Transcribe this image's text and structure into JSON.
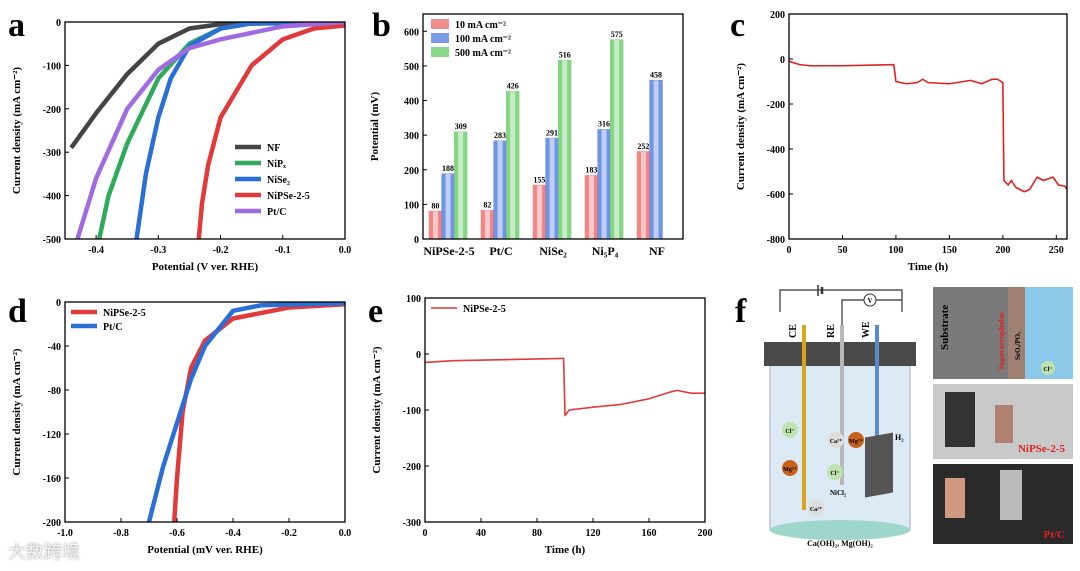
{
  "panel_labels": [
    "a",
    "b",
    "c",
    "d",
    "e",
    "f"
  ],
  "watermark": "大数跨境",
  "chart_data": [
    {
      "id": "a",
      "type": "line",
      "xlabel": "Potential (V ver. RHE)",
      "ylabel": "Current density (mA cm⁻²)",
      "xlim": [
        -0.45,
        0
      ],
      "ylim": [
        -500,
        0
      ],
      "xticks": [
        -0.4,
        -0.3,
        -0.2,
        -0.1,
        0.0
      ],
      "xtick_labels": [
        "-0.4",
        "-0.3",
        "-0.2",
        "-0.1",
        "0.0"
      ],
      "yticks": [
        0,
        -100,
        -200,
        -300,
        -400,
        -500
      ],
      "ytick_labels": [
        "0",
        "-100",
        "-200",
        "-300",
        "-400",
        "-500"
      ],
      "legend": "bottom-right",
      "series": [
        {
          "name": "NF",
          "color": "#444444",
          "x": [
            0,
            -0.2,
            -0.25,
            -0.3,
            -0.35,
            -0.4,
            -0.44
          ],
          "y": [
            0,
            -5,
            -15,
            -50,
            -120,
            -210,
            -290
          ]
        },
        {
          "name": "NiPₓ",
          "color": "#2eaa5a",
          "x": [
            0,
            -0.15,
            -0.2,
            -0.25,
            -0.3,
            -0.35,
            -0.38,
            -0.395
          ],
          "y": [
            0,
            -3,
            -15,
            -50,
            -130,
            -280,
            -400,
            -500
          ]
        },
        {
          "name": "NiSe₂",
          "color": "#2a6fd6",
          "x": [
            0,
            -0.15,
            -0.2,
            -0.25,
            -0.28,
            -0.3,
            -0.32,
            -0.335
          ],
          "y": [
            0,
            -3,
            -15,
            -55,
            -130,
            -220,
            -350,
            -500
          ]
        },
        {
          "name": "NiPSe-2-5",
          "color": "#e03a3a",
          "x": [
            0,
            -0.05,
            -0.1,
            -0.15,
            -0.2,
            -0.22,
            -0.23,
            -0.235
          ],
          "y": [
            -8,
            -15,
            -40,
            -100,
            -220,
            -330,
            -420,
            -500
          ]
        },
        {
          "name": "Pt/C",
          "color": "#a06be0",
          "x": [
            0,
            -0.1,
            -0.2,
            -0.25,
            -0.3,
            -0.35,
            -0.4,
            -0.43
          ],
          "y": [
            0,
            -10,
            -40,
            -60,
            -110,
            -200,
            -360,
            -500
          ]
        }
      ]
    },
    {
      "id": "b",
      "type": "bar",
      "xlabel": "",
      "ylabel": "Potential (mV)",
      "ylim": [
        0,
        650
      ],
      "yticks": [
        0,
        100,
        200,
        300,
        400,
        500,
        600
      ],
      "ytick_labels": [
        "0",
        "100",
        "200",
        "300",
        "400",
        "500",
        "600"
      ],
      "categories": [
        "NiPSe-2-5",
        "Pt/C",
        "NiSe₂",
        "Ni₅P₄",
        "NF"
      ],
      "legend": "top-left",
      "series": [
        {
          "name": "10 mA cm⁻²",
          "color": "#f07070",
          "values": [
            80,
            82,
            155,
            183,
            252
          ]
        },
        {
          "name": "100 mA cm⁻²",
          "color": "#5a82e0",
          "values": [
            188,
            283,
            291,
            316,
            458
          ]
        },
        {
          "name": "500 mA cm⁻²",
          "color": "#6fd06f",
          "values": [
            309,
            426,
            516,
            575,
            null
          ]
        }
      ]
    },
    {
      "id": "c",
      "type": "line",
      "xlabel": "Time (h)",
      "ylabel": "Current density (mA cm⁻²)",
      "xlim": [
        0,
        260
      ],
      "ylim": [
        -800,
        200
      ],
      "xticks": [
        0,
        50,
        100,
        150,
        200,
        250
      ],
      "xtick_labels": [
        "0",
        "50",
        "100",
        "150",
        "200",
        "250"
      ],
      "yticks": [
        200,
        0,
        -200,
        -400,
        -600,
        -800
      ],
      "ytick_labels": [
        "200",
        "0",
        "-200",
        "-400",
        "-600",
        "-800"
      ],
      "series": [
        {
          "name": "NiPSe-2-5",
          "color": "#e02020",
          "x": [
            0,
            10,
            20,
            50,
            98,
            100,
            110,
            120,
            125,
            130,
            150,
            170,
            180,
            190,
            195,
            200,
            201,
            205,
            208,
            212,
            220,
            225,
            232,
            238,
            247,
            252,
            258,
            260
          ],
          "y": [
            -10,
            -25,
            -30,
            -30,
            -25,
            -100,
            -110,
            -105,
            -90,
            -105,
            -110,
            -95,
            -110,
            -90,
            -90,
            -105,
            -540,
            -560,
            -540,
            -570,
            -590,
            -580,
            -525,
            -540,
            -525,
            -560,
            -565,
            -580
          ]
        }
      ]
    },
    {
      "id": "d",
      "type": "line",
      "xlabel": "Potential (mV ver. RHE)",
      "ylabel": "Current density (mA cm⁻²)",
      "xlim": [
        -1.0,
        0
      ],
      "ylim": [
        -200,
        0
      ],
      "xticks": [
        -1.0,
        -0.8,
        -0.6,
        -0.4,
        -0.2,
        0.0
      ],
      "xtick_labels": [
        "-1.0",
        "-0.8",
        "-0.6",
        "-0.4",
        "-0.2",
        "0.0"
      ],
      "yticks": [
        0,
        -40,
        -80,
        -120,
        -160,
        -200
      ],
      "ytick_labels": [
        "0",
        "-40",
        "-80",
        "-120",
        "-160",
        "-200"
      ],
      "legend": "top-left",
      "series": [
        {
          "name": "NiPSe-2-5",
          "color": "#e03a3a",
          "x": [
            0,
            -0.2,
            -0.4,
            -0.5,
            -0.55,
            -0.58,
            -0.6,
            -0.61
          ],
          "y": [
            -2,
            -5,
            -15,
            -35,
            -60,
            -100,
            -160,
            -200
          ]
        },
        {
          "name": "Pt/C",
          "color": "#2a6fd6",
          "x": [
            0,
            -0.3,
            -0.4,
            -0.5,
            -0.55,
            -0.6,
            -0.65,
            -0.7
          ],
          "y": [
            -1,
            -3,
            -8,
            -40,
            -70,
            -110,
            -150,
            -200
          ]
        }
      ]
    },
    {
      "id": "e",
      "type": "line",
      "xlabel": "Time (h)",
      "ylabel": "Current density (mA cm⁻²)",
      "xlim": [
        0,
        200
      ],
      "ylim": [
        -300,
        100
      ],
      "xticks": [
        0,
        40,
        80,
        120,
        160,
        200
      ],
      "xtick_labels": [
        "0",
        "40",
        "80",
        "120",
        "160",
        "200"
      ],
      "yticks": [
        100,
        0,
        -100,
        -200,
        -300
      ],
      "ytick_labels": [
        "100",
        "0",
        "-100",
        "-200",
        "-300"
      ],
      "legend": "top-left",
      "series": [
        {
          "name": "NiPSe-2-5",
          "color": "#e03a3a",
          "x": [
            0,
            20,
            98,
            99,
            100,
            103,
            120,
            140,
            160,
            175,
            180,
            190,
            200
          ],
          "y": [
            -15,
            -12,
            -8,
            -8,
            -110,
            -100,
            -95,
            -90,
            -80,
            -68,
            -65,
            -70,
            -70
          ]
        }
      ]
    }
  ],
  "schematic": {
    "electrodes": [
      "CE",
      "RE",
      "WE"
    ],
    "meter": "V",
    "ions": [
      "Cl⁻",
      "Mg²⁺",
      "Ca²⁺",
      "Mg²⁺",
      "Cl⁻",
      "Ca²⁺"
    ],
    "gas": "H₂",
    "product": "NiCl₂",
    "precipitate": "Ca(OH)₂, Mg(OH)₂",
    "sem_labels": {
      "substrate": "Substrate",
      "layer": "Superaerophobic",
      "coating": "SeOₓ/POₓ",
      "ion": "Cl⁻"
    },
    "photo_labels": [
      "NiPSe-2-5",
      "Pt/C"
    ]
  }
}
